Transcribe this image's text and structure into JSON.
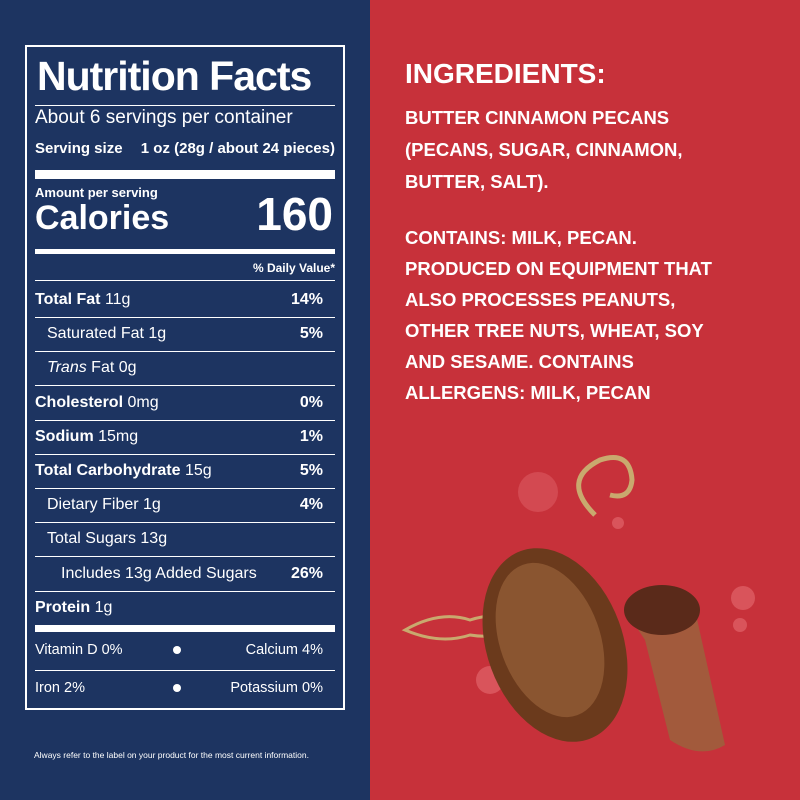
{
  "nutrition": {
    "title": "Nutrition Facts",
    "servings": "About 6 servings per container",
    "serving_size_label": "Serving size",
    "serving_size": "1 oz (28g / about 24 pieces)",
    "amount_per_serving": "Amount per serving",
    "calories_label": "Calories",
    "calories": 160,
    "daily_value_header": "% Daily Value*",
    "rows": [
      {
        "name": "Total Fat",
        "amount": "11g",
        "dv": "14%"
      },
      {
        "name": "Saturated Fat",
        "amount": "1g",
        "dv": "5%"
      },
      {
        "italic": "Trans",
        "name": "Fat",
        "amount": "0g"
      },
      {
        "name": "Cholesterol",
        "amount": "0mg",
        "dv": "0%"
      },
      {
        "name": "Sodium",
        "amount": "15mg",
        "dv": "1%"
      },
      {
        "name": "Total Carbohydrate",
        "amount": "15g",
        "dv": "5%"
      },
      {
        "name": "Dietary Fiber",
        "amount": "1g",
        "dv": "4%"
      },
      {
        "name": "Total Sugars",
        "amount": "13g"
      },
      {
        "name": "Includes 13g Added Sugars",
        "dv": "26%"
      },
      {
        "name": "Protein",
        "amount": "1g"
      }
    ],
    "vitamins": [
      [
        "Vitamin D 0%",
        "Calcium 4%"
      ],
      [
        "Iron 2%",
        "Potassium 0%"
      ]
    ]
  },
  "footnote": "Always refer to the label on your product for the most current information.",
  "ingredients": {
    "title": "INGREDIENTS:",
    "lines": [
      "BUTTER CINNAMON PECANS",
      "(PECANS, SUGAR, CINNAMON,",
      "BUTTER, SALT)."
    ],
    "contains": [
      "CONTAINS: MILK, PECAN.",
      "PRODUCED ON EQUIPMENT THAT",
      "ALSO PROCESSES PEANUTS,",
      "OTHER TREE NUTS, WHEAT, SOY",
      "AND SESAME. CONTAINS",
      "ALLERGENS: MILK, PECAN"
    ]
  }
}
